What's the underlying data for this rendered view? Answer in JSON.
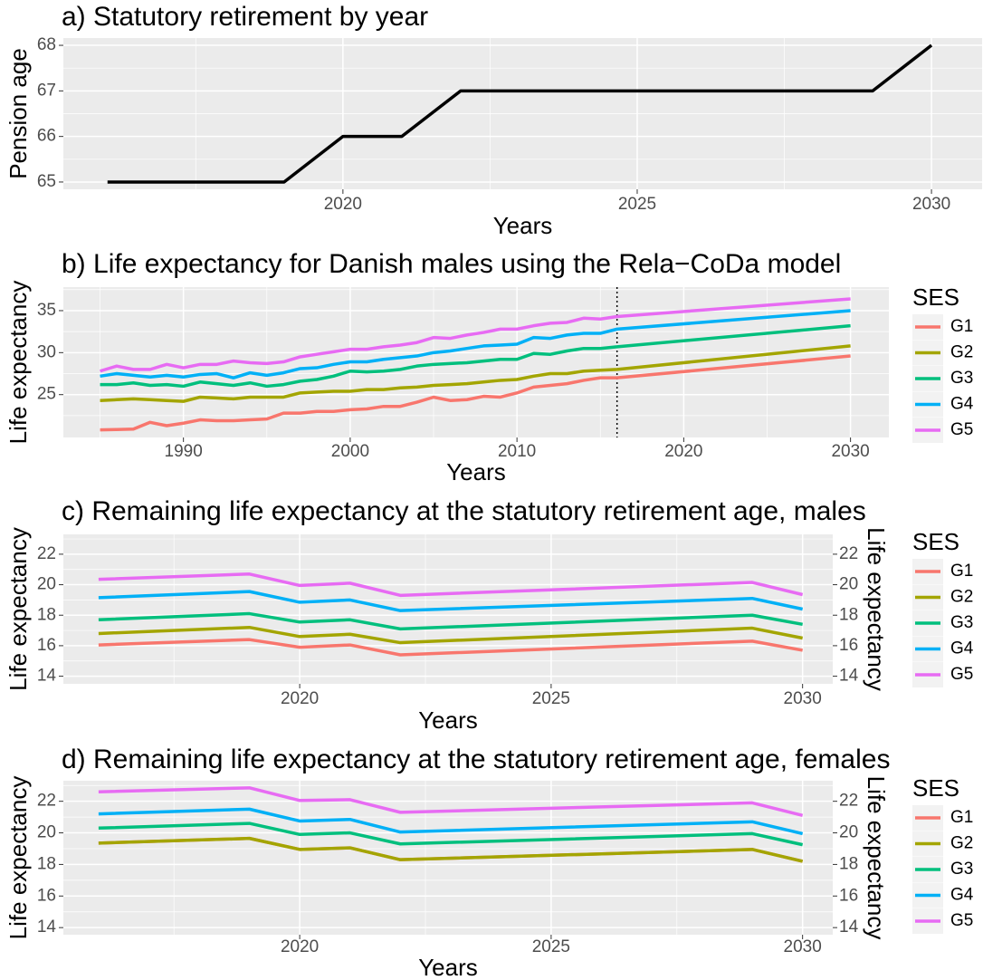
{
  "chart_data": [
    {
      "type": "line",
      "title": "a) Statutory retirement by year",
      "xlabel": "Years",
      "ylabel": "Pension age",
      "x": [
        2016,
        2019,
        2020,
        2021,
        2022,
        2029,
        2030
      ],
      "values": [
        65,
        65,
        66,
        66,
        67,
        67,
        68
      ],
      "color": "#000000",
      "xlim": [
        2015.25,
        2030.86
      ],
      "xticks": [
        2020,
        2025,
        2030
      ],
      "ylim": [
        64.84,
        68.16
      ],
      "yticks": [
        65,
        66,
        67,
        68
      ],
      "grid": true
    },
    {
      "type": "line",
      "title": "b) Life expectancy for Danish males using the Rela−CoDa model",
      "xlabel": "Years",
      "ylabel": "Life expectancy",
      "legend_title": "SES",
      "x": [
        1985,
        1986,
        1987,
        1988,
        1989,
        1990,
        1991,
        1992,
        1993,
        1994,
        1995,
        1996,
        1997,
        1998,
        1999,
        2000,
        2001,
        2002,
        2003,
        2004,
        2005,
        2006,
        2007,
        2008,
        2009,
        2010,
        2011,
        2012,
        2013,
        2014,
        2015,
        2016,
        2030
      ],
      "series": [
        {
          "name": "G1",
          "color": "#F8766D",
          "values": [
            20.8,
            20.85,
            20.9,
            21.7,
            21.3,
            21.6,
            22.0,
            21.9,
            21.9,
            22.0,
            22.1,
            22.8,
            22.8,
            23.0,
            23.0,
            23.2,
            23.3,
            23.6,
            23.6,
            24.1,
            24.7,
            24.3,
            24.4,
            24.8,
            24.7,
            25.2,
            25.9,
            26.1,
            26.3,
            26.7,
            27.0,
            27.0,
            29.6
          ]
        },
        {
          "name": "G2",
          "color": "#A3A500",
          "values": [
            24.3,
            24.4,
            24.5,
            24.4,
            24.3,
            24.2,
            24.7,
            24.6,
            24.5,
            24.7,
            24.7,
            24.7,
            25.2,
            25.3,
            25.4,
            25.4,
            25.6,
            25.6,
            25.8,
            25.9,
            26.1,
            26.2,
            26.3,
            26.5,
            26.7,
            26.8,
            27.2,
            27.5,
            27.5,
            27.8,
            27.9,
            28.0,
            30.8
          ]
        },
        {
          "name": "G3",
          "color": "#00BF7D",
          "values": [
            26.2,
            26.2,
            26.4,
            26.1,
            26.2,
            26.0,
            26.5,
            26.3,
            26.1,
            26.4,
            26.0,
            26.2,
            26.6,
            26.8,
            27.2,
            27.8,
            27.7,
            27.8,
            28.0,
            28.4,
            28.6,
            28.7,
            28.8,
            29.0,
            29.2,
            29.2,
            29.9,
            29.8,
            30.2,
            30.5,
            30.5,
            30.7,
            33.2
          ]
        },
        {
          "name": "G4",
          "color": "#00B0F6",
          "values": [
            27.2,
            27.5,
            27.3,
            27.1,
            27.3,
            27.1,
            27.4,
            27.5,
            27.0,
            27.6,
            27.3,
            27.6,
            28.1,
            28.2,
            28.6,
            28.9,
            28.9,
            29.2,
            29.4,
            29.6,
            30.0,
            30.2,
            30.5,
            30.8,
            30.9,
            31.0,
            31.8,
            31.7,
            32.1,
            32.3,
            32.3,
            32.8,
            35.0
          ]
        },
        {
          "name": "G5",
          "color": "#E76BF3",
          "values": [
            27.8,
            28.4,
            28.0,
            28.0,
            28.6,
            28.2,
            28.6,
            28.6,
            29.0,
            28.8,
            28.7,
            28.9,
            29.5,
            29.8,
            30.1,
            30.4,
            30.4,
            30.7,
            30.9,
            31.2,
            31.8,
            31.7,
            32.1,
            32.4,
            32.8,
            32.8,
            33.2,
            33.5,
            33.6,
            34.1,
            34.0,
            34.3,
            36.4
          ]
        }
      ],
      "vline_x": 2016,
      "xlim": [
        1982.8,
        2032.3
      ],
      "xticks": [
        1990,
        2000,
        2010,
        2020,
        2030
      ],
      "ylim": [
        19.9,
        37.8
      ],
      "yticks": [
        25,
        30,
        35
      ],
      "grid": true
    },
    {
      "type": "line",
      "title": "c) Remaining life expectancy at the statutory retirement age, males",
      "xlabel": "Years",
      "ylabel": "Life expectancy",
      "y2label": "Life expectancy",
      "legend_title": "SES",
      "x": [
        2016,
        2019,
        2020,
        2021,
        2022,
        2029,
        2030
      ],
      "series": [
        {
          "name": "G1",
          "color": "#F8766D",
          "values": [
            16.05,
            16.4,
            15.9,
            16.05,
            15.4,
            16.3,
            15.7
          ]
        },
        {
          "name": "G2",
          "color": "#A3A500",
          "values": [
            16.8,
            17.2,
            16.6,
            16.75,
            16.2,
            17.15,
            16.5
          ]
        },
        {
          "name": "G3",
          "color": "#00BF7D",
          "values": [
            17.7,
            18.1,
            17.55,
            17.7,
            17.1,
            18.0,
            17.4
          ]
        },
        {
          "name": "G4",
          "color": "#00B0F6",
          "values": [
            19.15,
            19.55,
            18.85,
            19.0,
            18.3,
            19.1,
            18.4
          ]
        },
        {
          "name": "G5",
          "color": "#E76BF3",
          "values": [
            20.35,
            20.7,
            19.95,
            20.1,
            19.3,
            20.15,
            19.35
          ]
        }
      ],
      "xlim": [
        2015.3,
        2030.6
      ],
      "xticks": [
        2020,
        2025,
        2030
      ],
      "ylim": [
        13.5,
        23.3
      ],
      "yticks": [
        14,
        16,
        18,
        20,
        22
      ],
      "y2lim": [
        13.5,
        23.3
      ],
      "y2ticks": [
        14,
        16,
        18,
        20,
        22
      ],
      "grid": true
    },
    {
      "type": "line",
      "title": "d) Remaining life expectancy at the statutory retirement age, females",
      "xlabel": "Years",
      "ylabel": "Life expectancy",
      "y2label": "Life expectancy",
      "legend_title": "SES",
      "x": [
        2016,
        2019,
        2020,
        2021,
        2022,
        2029,
        2030
      ],
      "series": [
        {
          "name": "G1",
          "color": "#F8766D",
          "values": [
            19.35,
            19.65,
            18.95,
            19.05,
            18.3,
            18.95,
            18.2
          ]
        },
        {
          "name": "G2",
          "color": "#A3A500",
          "values": [
            19.35,
            19.65,
            18.95,
            19.05,
            18.3,
            18.95,
            18.2
          ]
        },
        {
          "name": "G3",
          "color": "#00BF7D",
          "values": [
            20.3,
            20.6,
            19.9,
            20.0,
            19.3,
            19.95,
            19.25
          ]
        },
        {
          "name": "G4",
          "color": "#00B0F6",
          "values": [
            21.2,
            21.5,
            20.75,
            20.85,
            20.05,
            20.7,
            19.95
          ]
        },
        {
          "name": "G5",
          "color": "#E76BF3",
          "values": [
            22.6,
            22.85,
            22.05,
            22.1,
            21.3,
            21.9,
            21.1
          ]
        }
      ],
      "xlim": [
        2015.3,
        2030.6
      ],
      "xticks": [
        2020,
        2025,
        2030
      ],
      "ylim": [
        13.55,
        23.3
      ],
      "yticks": [
        14,
        16,
        18,
        20,
        22
      ],
      "y2lim": [
        13.55,
        23.3
      ],
      "y2ticks": [
        14,
        16,
        18,
        20,
        22
      ],
      "grid": true
    }
  ]
}
